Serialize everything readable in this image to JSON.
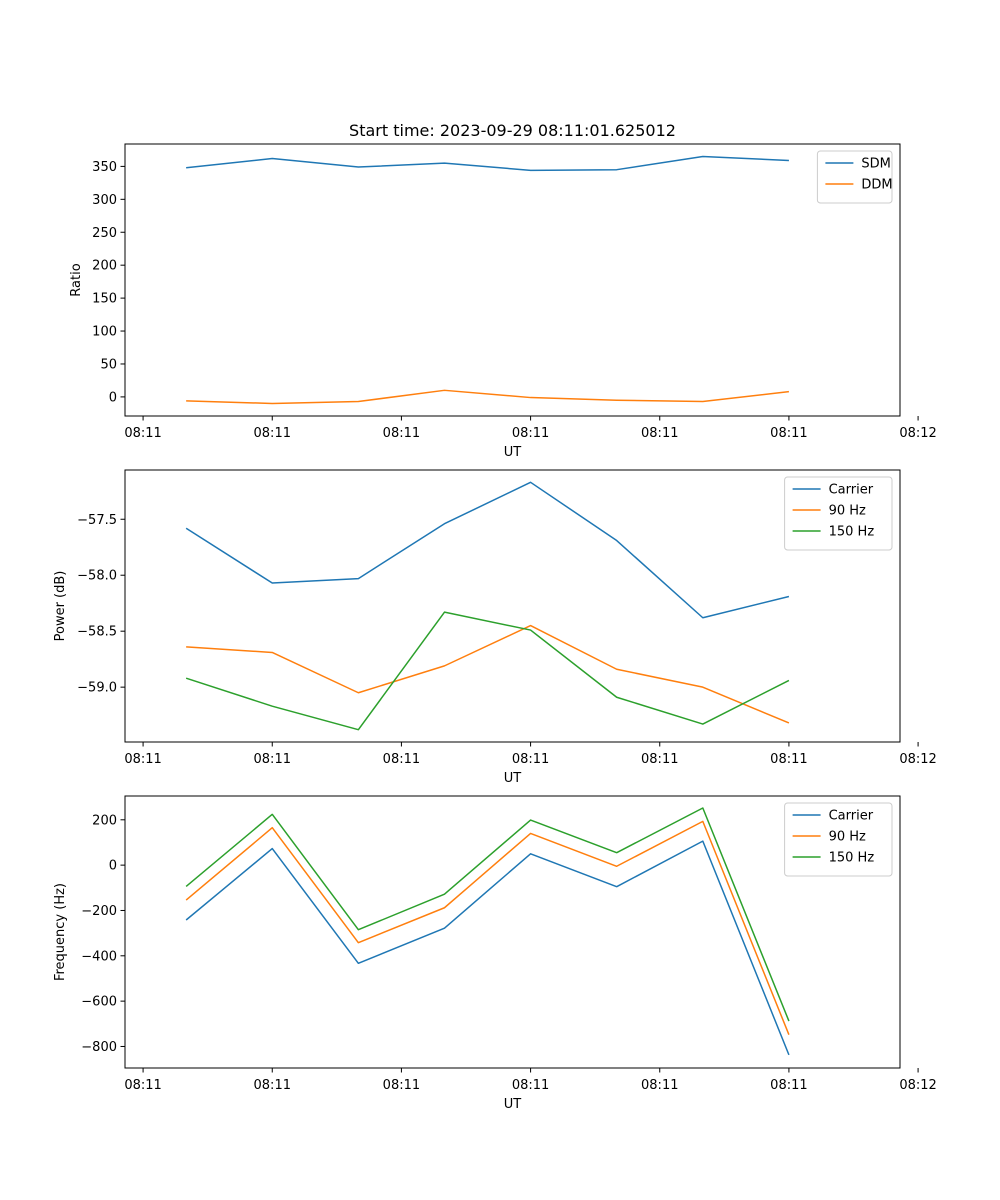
{
  "figure_title": "Start time: 2023-09-29 08:11:01.625012",
  "chart_data": [
    {
      "type": "line",
      "xlabel": "UT",
      "ylabel": "Ratio",
      "x": [
        1,
        2,
        3,
        4,
        5,
        6,
        7,
        8
      ],
      "xlim": [
        0.29,
        9.29
      ],
      "xticks": [
        0.5,
        2.0,
        3.5,
        5.0,
        6.5,
        8.0,
        9.5
      ],
      "xtick_labels": [
        "08:11",
        "08:11",
        "08:11",
        "08:11",
        "08:11",
        "08:11",
        "08:12"
      ],
      "ylim": [
        -29,
        384
      ],
      "yticks": [
        0,
        50,
        100,
        150,
        200,
        250,
        300,
        350
      ],
      "ytick_labels": [
        "0",
        "50",
        "100",
        "150",
        "200",
        "250",
        "300",
        "350"
      ],
      "legend_position": "upper-right",
      "series": [
        {
          "name": "SDM",
          "color": "#1f77b4",
          "values": [
            348,
            362,
            349,
            355,
            344,
            345,
            365,
            359
          ]
        },
        {
          "name": "DDM",
          "color": "#ff7f0e",
          "values": [
            -6,
            -10,
            -7,
            10,
            -1,
            -5,
            -7,
            8
          ]
        }
      ]
    },
    {
      "type": "line",
      "xlabel": "UT",
      "ylabel": "Power (dB)",
      "x": [
        1,
        2,
        3,
        4,
        5,
        6,
        7,
        8
      ],
      "xlim": [
        0.29,
        9.29
      ],
      "xticks": [
        0.5,
        2.0,
        3.5,
        5.0,
        6.5,
        8.0,
        9.5
      ],
      "xtick_labels": [
        "08:11",
        "08:11",
        "08:11",
        "08:11",
        "08:11",
        "08:11",
        "08:12"
      ],
      "ylim": [
        -59.49,
        -57.06
      ],
      "yticks": [
        -59.0,
        -58.5,
        -58.0,
        -57.5
      ],
      "ytick_labels": [
        "−59.0",
        "−58.5",
        "−58.0",
        "−57.5"
      ],
      "legend_position": "upper-right",
      "series": [
        {
          "name": "Carrier",
          "color": "#1f77b4",
          "values": [
            -57.58,
            -58.07,
            -58.03,
            -57.54,
            -57.17,
            -57.69,
            -58.38,
            -58.19
          ]
        },
        {
          "name": "90 Hz",
          "color": "#ff7f0e",
          "values": [
            -58.64,
            -58.69,
            -59.05,
            -58.81,
            -58.45,
            -58.84,
            -59.0,
            -59.32
          ]
        },
        {
          "name": "150 Hz",
          "color": "#2ca02c",
          "values": [
            -58.92,
            -59.17,
            -59.38,
            -58.33,
            -58.49,
            -59.09,
            -59.33,
            -58.94
          ]
        }
      ]
    },
    {
      "type": "line",
      "xlabel": "UT",
      "ylabel": "Frequency (Hz)",
      "x": [
        1,
        2,
        3,
        4,
        5,
        6,
        7,
        8
      ],
      "xlim": [
        0.29,
        9.29
      ],
      "xticks": [
        0.5,
        2.0,
        3.5,
        5.0,
        6.5,
        8.0,
        9.5
      ],
      "xtick_labels": [
        "08:11",
        "08:11",
        "08:11",
        "08:11",
        "08:11",
        "08:11",
        "08:12"
      ],
      "ylim": [
        -895,
        305
      ],
      "yticks": [
        -800,
        -600,
        -400,
        -200,
        0,
        200
      ],
      "ytick_labels": [
        "−800",
        "−600",
        "−400",
        "−200",
        "0",
        "200"
      ],
      "legend_position": "upper-right",
      "series": [
        {
          "name": "Carrier",
          "color": "#1f77b4",
          "values": [
            -242,
            73,
            -433,
            -278,
            50,
            -95,
            106,
            -837
          ]
        },
        {
          "name": "90 Hz",
          "color": "#ff7f0e",
          "values": [
            -154,
            165,
            -342,
            -188,
            140,
            -5,
            193,
            -748
          ]
        },
        {
          "name": "150 Hz",
          "color": "#2ca02c",
          "values": [
            -94,
            224,
            -285,
            -128,
            199,
            55,
            252,
            -688
          ]
        }
      ]
    }
  ]
}
